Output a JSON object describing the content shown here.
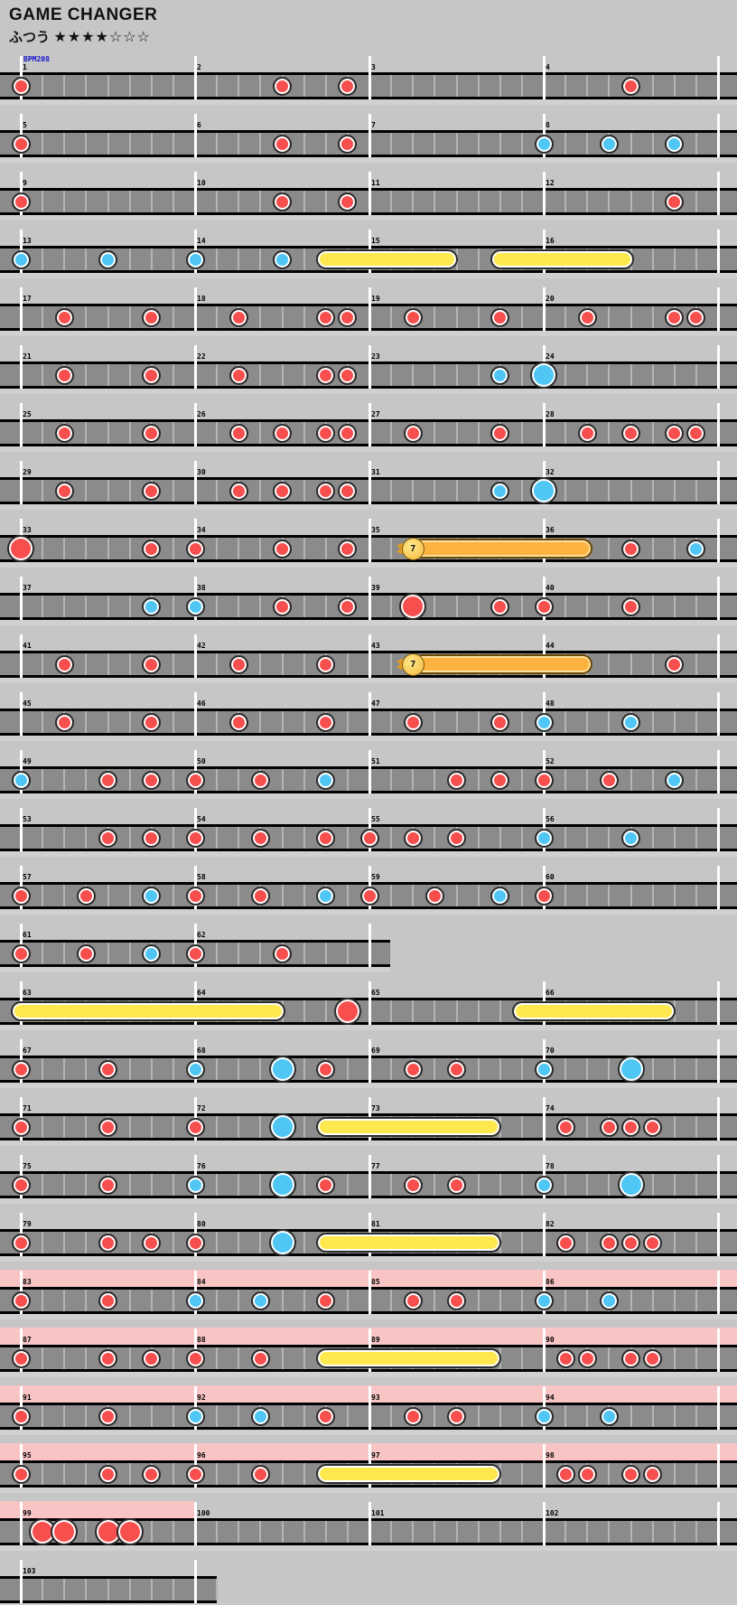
{
  "header": {
    "title": "GAME CHANGER",
    "difficulty_label": "ふつう",
    "stars": "★★★★☆☆☆",
    "bpm_label": "BPM208"
  },
  "colors": {
    "page_bg": "#c6c6c6",
    "lane": "#8b8b8b",
    "beat_line": "#b4b4b4",
    "measure_line": "#ffffff",
    "gogo_band": "#f8c4c4",
    "don_red": "#f74e4e",
    "ka_blue": "#4fc6f4",
    "roll_yellow": "#ffe84d",
    "balloon_orange": "#fbb23f"
  },
  "chart_data": {
    "type": "taiko-note-chart",
    "title": "GAME CHANGER",
    "bpm": 208,
    "note_legend": {
      "d": "don (red)",
      "k": "ka (blue)",
      "D": "big don (red)",
      "K": "big ka (blue)"
    },
    "roll_format": "[measure, eighth_position, length_in_eighths]",
    "balloon_format": "[measure, eighth_position, length_in_eighths, hit_count]",
    "note_format": "[measure, eighth_position, type]",
    "rows": [
      {
        "measures": [
          1,
          2,
          3,
          4
        ],
        "notes": [
          [
            1,
            0,
            "d"
          ],
          [
            2,
            4,
            "d"
          ],
          [
            2,
            7,
            "d"
          ],
          [
            4,
            4,
            "d"
          ]
        ]
      },
      {
        "measures": [
          5,
          6,
          7,
          8
        ],
        "notes": [
          [
            5,
            0,
            "d"
          ],
          [
            6,
            4,
            "d"
          ],
          [
            6,
            7,
            "d"
          ],
          [
            8,
            0,
            "k"
          ],
          [
            8,
            3,
            "k"
          ],
          [
            8,
            6,
            "k"
          ]
        ]
      },
      {
        "measures": [
          9,
          10,
          11,
          12
        ],
        "notes": [
          [
            9,
            0,
            "d"
          ],
          [
            10,
            4,
            "d"
          ],
          [
            10,
            7,
            "d"
          ],
          [
            12,
            6,
            "d"
          ]
        ]
      },
      {
        "measures": [
          13,
          14,
          15,
          16
        ],
        "notes": [
          [
            13,
            0,
            "k"
          ],
          [
            13,
            4,
            "k"
          ],
          [
            14,
            0,
            "k"
          ],
          [
            14,
            4,
            "k"
          ]
        ],
        "rolls": [
          [
            14,
            6,
            5.6
          ],
          [
            15,
            6,
            5.7
          ]
        ]
      },
      {
        "measures": [
          17,
          18,
          19,
          20
        ],
        "notes": [
          [
            17,
            2,
            "d"
          ],
          [
            17,
            6,
            "d"
          ],
          [
            18,
            2,
            "d"
          ],
          [
            18,
            6,
            "d"
          ],
          [
            18,
            7,
            "d"
          ],
          [
            19,
            2,
            "d"
          ],
          [
            19,
            6,
            "d"
          ],
          [
            20,
            2,
            "d"
          ],
          [
            20,
            6,
            "d"
          ],
          [
            20,
            7,
            "d"
          ]
        ]
      },
      {
        "measures": [
          21,
          22,
          23,
          24
        ],
        "notes": [
          [
            21,
            2,
            "d"
          ],
          [
            21,
            6,
            "d"
          ],
          [
            22,
            2,
            "d"
          ],
          [
            22,
            6,
            "d"
          ],
          [
            22,
            7,
            "d"
          ],
          [
            23,
            6,
            "k"
          ],
          [
            24,
            0,
            "K"
          ]
        ]
      },
      {
        "measures": [
          25,
          26,
          27,
          28
        ],
        "notes": [
          [
            25,
            2,
            "d"
          ],
          [
            25,
            6,
            "d"
          ],
          [
            26,
            2,
            "d"
          ],
          [
            26,
            4,
            "d"
          ],
          [
            26,
            6,
            "d"
          ],
          [
            26,
            7,
            "d"
          ],
          [
            27,
            2,
            "d"
          ],
          [
            27,
            6,
            "d"
          ],
          [
            28,
            2,
            "d"
          ],
          [
            28,
            4,
            "d"
          ],
          [
            28,
            6,
            "d"
          ],
          [
            28,
            7,
            "d"
          ]
        ]
      },
      {
        "measures": [
          29,
          30,
          31,
          32
        ],
        "notes": [
          [
            29,
            2,
            "d"
          ],
          [
            29,
            6,
            "d"
          ],
          [
            30,
            2,
            "d"
          ],
          [
            30,
            4,
            "d"
          ],
          [
            30,
            6,
            "d"
          ],
          [
            30,
            7,
            "d"
          ],
          [
            31,
            6,
            "k"
          ],
          [
            32,
            0,
            "K"
          ]
        ]
      },
      {
        "measures": [
          33,
          34,
          35,
          36
        ],
        "notes": [
          [
            33,
            0,
            "D"
          ],
          [
            33,
            6,
            "d"
          ],
          [
            34,
            0,
            "d"
          ],
          [
            34,
            4,
            "d"
          ],
          [
            34,
            7,
            "d"
          ],
          [
            36,
            4,
            "d"
          ],
          [
            36,
            7,
            "k"
          ]
        ],
        "balloons": [
          [
            35,
            2,
            7.8,
            7
          ]
        ]
      },
      {
        "measures": [
          37,
          38,
          39,
          40
        ],
        "notes": [
          [
            37,
            6,
            "k"
          ],
          [
            38,
            0,
            "k"
          ],
          [
            38,
            4,
            "d"
          ],
          [
            38,
            7,
            "d"
          ],
          [
            39,
            2,
            "D"
          ],
          [
            39,
            6,
            "d"
          ],
          [
            40,
            0,
            "d"
          ],
          [
            40,
            4,
            "d"
          ]
        ]
      },
      {
        "measures": [
          41,
          42,
          43,
          44
        ],
        "notes": [
          [
            41,
            2,
            "d"
          ],
          [
            41,
            6,
            "d"
          ],
          [
            42,
            2,
            "d"
          ],
          [
            42,
            6,
            "d"
          ],
          [
            44,
            6,
            "d"
          ]
        ],
        "balloons": [
          [
            43,
            2,
            7.8,
            7
          ]
        ]
      },
      {
        "measures": [
          45,
          46,
          47,
          48
        ],
        "notes": [
          [
            45,
            2,
            "d"
          ],
          [
            45,
            6,
            "d"
          ],
          [
            46,
            2,
            "d"
          ],
          [
            46,
            6,
            "d"
          ],
          [
            47,
            2,
            "d"
          ],
          [
            47,
            6,
            "d"
          ],
          [
            48,
            0,
            "k"
          ],
          [
            48,
            4,
            "k"
          ]
        ]
      },
      {
        "measures": [
          49,
          50,
          51,
          52
        ],
        "notes": [
          [
            49,
            0,
            "k"
          ],
          [
            49,
            4,
            "d"
          ],
          [
            49,
            6,
            "d"
          ],
          [
            50,
            0,
            "d"
          ],
          [
            50,
            3,
            "d"
          ],
          [
            50,
            6,
            "k"
          ],
          [
            51,
            4,
            "d"
          ],
          [
            51,
            6,
            "d"
          ],
          [
            52,
            0,
            "d"
          ],
          [
            52,
            3,
            "d"
          ],
          [
            52,
            6,
            "k"
          ]
        ]
      },
      {
        "measures": [
          53,
          54,
          55,
          56
        ],
        "notes": [
          [
            53,
            4,
            "d"
          ],
          [
            53,
            6,
            "d"
          ],
          [
            54,
            0,
            "d"
          ],
          [
            54,
            3,
            "d"
          ],
          [
            54,
            6,
            "d"
          ],
          [
            55,
            0,
            "d"
          ],
          [
            55,
            2,
            "d"
          ],
          [
            55,
            4,
            "d"
          ],
          [
            56,
            0,
            "k"
          ],
          [
            56,
            4,
            "k"
          ]
        ]
      },
      {
        "measures": [
          57,
          58,
          59,
          60
        ],
        "notes": [
          [
            57,
            0,
            "d"
          ],
          [
            57,
            3,
            "d"
          ],
          [
            57,
            6,
            "k"
          ],
          [
            58,
            0,
            "d"
          ],
          [
            58,
            3,
            "d"
          ],
          [
            58,
            6,
            "k"
          ],
          [
            59,
            0,
            "d"
          ],
          [
            59,
            3,
            "d"
          ],
          [
            59,
            6,
            "k"
          ],
          [
            60,
            0,
            "d"
          ]
        ]
      },
      {
        "measures": [
          61,
          62
        ],
        "lane_width": 432,
        "notes": [
          [
            61,
            0,
            "d"
          ],
          [
            61,
            3,
            "d"
          ],
          [
            61,
            6,
            "k"
          ],
          [
            62,
            0,
            "d"
          ],
          [
            62,
            4,
            "d"
          ]
        ]
      },
      {
        "measures": [
          63,
          64,
          65,
          66
        ],
        "notes": [
          [
            64,
            7,
            "D"
          ]
        ],
        "rolls": [
          [
            63,
            0,
            11.7
          ],
          [
            65,
            7,
            6.6
          ]
        ]
      },
      {
        "measures": [
          67,
          68,
          69,
          70
        ],
        "notes": [
          [
            67,
            0,
            "d"
          ],
          [
            67,
            4,
            "d"
          ],
          [
            68,
            0,
            "k"
          ],
          [
            68,
            4,
            "K"
          ],
          [
            68,
            6,
            "d"
          ],
          [
            69,
            2,
            "d"
          ],
          [
            69,
            4,
            "d"
          ],
          [
            70,
            0,
            "k"
          ],
          [
            70,
            4,
            "K"
          ]
        ]
      },
      {
        "measures": [
          71,
          72,
          73,
          74
        ],
        "notes": [
          [
            71,
            0,
            "d"
          ],
          [
            71,
            4,
            "d"
          ],
          [
            72,
            0,
            "d"
          ],
          [
            72,
            4,
            "K"
          ],
          [
            74,
            1,
            "d"
          ],
          [
            74,
            3,
            "d"
          ],
          [
            74,
            4,
            "d"
          ],
          [
            74,
            5,
            "d"
          ]
        ],
        "rolls": [
          [
            72,
            6,
            7.6
          ]
        ]
      },
      {
        "measures": [
          75,
          76,
          77,
          78
        ],
        "notes": [
          [
            75,
            0,
            "d"
          ],
          [
            75,
            4,
            "d"
          ],
          [
            76,
            0,
            "k"
          ],
          [
            76,
            4,
            "K"
          ],
          [
            76,
            6,
            "d"
          ],
          [
            77,
            2,
            "d"
          ],
          [
            77,
            4,
            "d"
          ],
          [
            78,
            0,
            "k"
          ],
          [
            78,
            4,
            "K"
          ]
        ]
      },
      {
        "measures": [
          79,
          80,
          81,
          82
        ],
        "notes": [
          [
            79,
            0,
            "d"
          ],
          [
            79,
            4,
            "d"
          ],
          [
            79,
            6,
            "d"
          ],
          [
            80,
            0,
            "d"
          ],
          [
            80,
            4,
            "K"
          ],
          [
            82,
            1,
            "d"
          ],
          [
            82,
            3,
            "d"
          ],
          [
            82,
            4,
            "d"
          ],
          [
            82,
            5,
            "d"
          ]
        ],
        "rolls": [
          [
            80,
            6,
            7.6
          ]
        ]
      },
      {
        "measures": [
          83,
          84,
          85,
          86
        ],
        "gogo": true,
        "notes": [
          [
            83,
            0,
            "d"
          ],
          [
            83,
            4,
            "d"
          ],
          [
            84,
            0,
            "k"
          ],
          [
            84,
            3,
            "k"
          ],
          [
            84,
            6,
            "d"
          ],
          [
            85,
            2,
            "d"
          ],
          [
            85,
            4,
            "d"
          ],
          [
            86,
            0,
            "k"
          ],
          [
            86,
            3,
            "k"
          ]
        ]
      },
      {
        "measures": [
          87,
          88,
          89,
          90
        ],
        "gogo": true,
        "notes": [
          [
            87,
            0,
            "d"
          ],
          [
            87,
            4,
            "d"
          ],
          [
            87,
            6,
            "d"
          ],
          [
            88,
            0,
            "d"
          ],
          [
            88,
            3,
            "d"
          ],
          [
            90,
            1,
            "d"
          ],
          [
            90,
            2,
            "d"
          ],
          [
            90,
            4,
            "d"
          ],
          [
            90,
            5,
            "d"
          ]
        ],
        "rolls": [
          [
            88,
            6,
            7.6
          ]
        ]
      },
      {
        "measures": [
          91,
          92,
          93,
          94
        ],
        "gogo": true,
        "notes": [
          [
            91,
            0,
            "d"
          ],
          [
            91,
            4,
            "d"
          ],
          [
            92,
            0,
            "k"
          ],
          [
            92,
            3,
            "k"
          ],
          [
            92,
            6,
            "d"
          ],
          [
            93,
            2,
            "d"
          ],
          [
            93,
            4,
            "d"
          ],
          [
            94,
            0,
            "k"
          ],
          [
            94,
            3,
            "k"
          ]
        ]
      },
      {
        "measures": [
          95,
          96,
          97,
          98
        ],
        "gogo": true,
        "notes": [
          [
            95,
            0,
            "d"
          ],
          [
            95,
            4,
            "d"
          ],
          [
            95,
            6,
            "d"
          ],
          [
            96,
            0,
            "d"
          ],
          [
            96,
            3,
            "d"
          ],
          [
            98,
            1,
            "d"
          ],
          [
            98,
            2,
            "d"
          ],
          [
            98,
            4,
            "d"
          ],
          [
            98,
            5,
            "d"
          ]
        ],
        "rolls": [
          [
            96,
            6,
            7.6
          ]
        ]
      },
      {
        "measures": [
          99,
          100,
          101,
          102
        ],
        "gogo": true,
        "gogo_width": 216,
        "notes": [
          [
            99,
            1,
            "D"
          ],
          [
            99,
            2,
            "D"
          ],
          [
            99,
            4,
            "D"
          ],
          [
            99,
            5,
            "D"
          ]
        ]
      },
      {
        "measures": [
          103
        ],
        "lane_width": 240,
        "notes": []
      }
    ]
  }
}
